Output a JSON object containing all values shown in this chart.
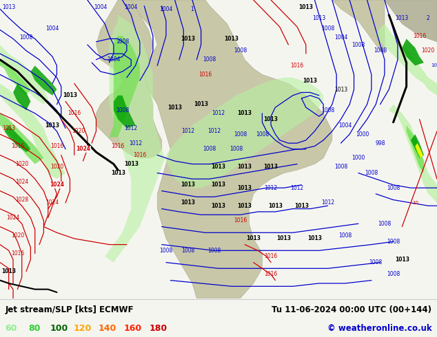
{
  "title_left": "Jet stream/SLP [kts] ECMWF",
  "title_right": "Tu 11-06-2024 00:00 UTC (00+144)",
  "copyright": "© weatheronline.co.uk",
  "legend_values": [
    "60",
    "80",
    "100",
    "120",
    "140",
    "160",
    "180"
  ],
  "legend_colors": [
    "#90ee90",
    "#32cd32",
    "#006400",
    "#ffa500",
    "#ff6600",
    "#ff2000",
    "#cc0000"
  ],
  "bg_color": "#f5f5f0",
  "map_bg": "#f0efe8",
  "bottom_bar_color": "#f0f0f0",
  "fig_width": 6.34,
  "fig_height": 4.9,
  "dpi": 100,
  "contour_blue_color": "#0000cc",
  "contour_red_color": "#cc0000",
  "contour_black_color": "#000000",
  "land_color": "#c8c8a8",
  "ocean_color": "#f0efe8",
  "jet_light_green": "#b8f0a0",
  "jet_mid_green": "#70e050",
  "jet_dark_green": "#00a000",
  "jet_yellow": "#ffff00",
  "label_fontsize": 7,
  "legend_fontsize": 9,
  "title_fontsize": 8.5,
  "copyright_fontsize": 8.5,
  "border_color": "#888888"
}
